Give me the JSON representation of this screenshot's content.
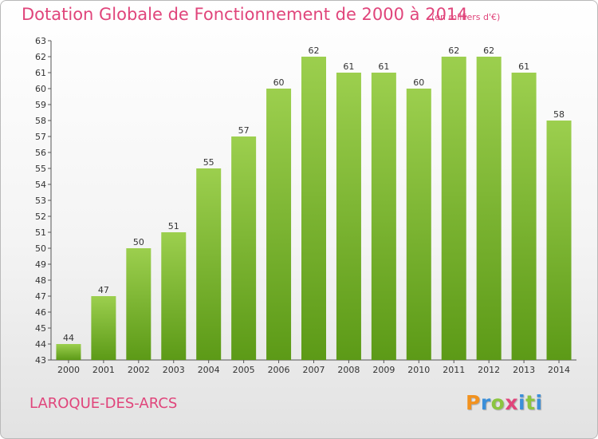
{
  "header": {
    "title": "Dotation Globale de Fonctionnement de 2000 à 2014",
    "unit": "(en milliers d'€)"
  },
  "footer": {
    "commune": "LAROQUE-DES-ARCS",
    "logo_letters": [
      "P",
      "r",
      "o",
      "x",
      "i",
      "t",
      "i"
    ]
  },
  "colors": {
    "title": "#e0457b",
    "bar_top": "#9ccf4e",
    "bar_bottom": "#5c9a17",
    "logo": [
      "#f2921f",
      "#3b8fd9",
      "#8bc53f",
      "#e0457b",
      "#3b8fd9",
      "#8bc53f",
      "#3b8fd9"
    ]
  },
  "chart_data": {
    "type": "bar",
    "categories": [
      "2000",
      "2001",
      "2002",
      "2003",
      "2004",
      "2005",
      "2006",
      "2007",
      "2008",
      "2009",
      "2010",
      "2011",
      "2012",
      "2013",
      "2014"
    ],
    "values": [
      44,
      47,
      50,
      51,
      55,
      57,
      60,
      62,
      61,
      61,
      60,
      62,
      62,
      61,
      58
    ],
    "title": "Dotation Globale de Fonctionnement de 2000 à 2014",
    "xlabel": "",
    "ylabel": "",
    "ylim": [
      43,
      63
    ],
    "yticks": [
      43,
      44,
      45,
      46,
      47,
      48,
      49,
      50,
      51,
      52,
      53,
      54,
      55,
      56,
      57,
      58,
      59,
      60,
      61,
      62,
      63
    ],
    "grid": false,
    "data_labels": true
  }
}
